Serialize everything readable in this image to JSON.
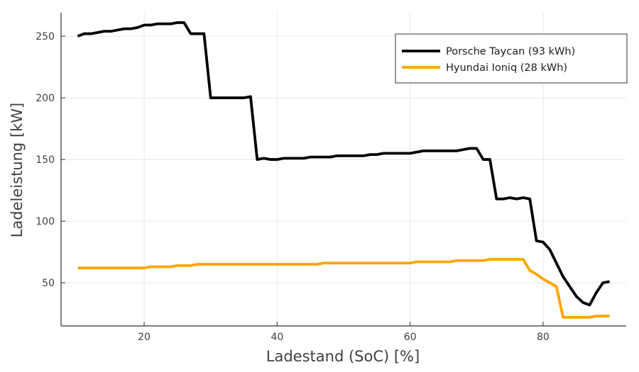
{
  "chart_data": {
    "type": "line",
    "title": "",
    "xlabel": "Ladestand (SoC) [%]",
    "ylabel": "Ladeleistung [kW]",
    "xlim": [
      7.5,
      92.5
    ],
    "ylim": [
      15,
      269
    ],
    "xticks": [
      20,
      40,
      60,
      80
    ],
    "yticks": [
      50,
      100,
      150,
      200,
      250
    ],
    "grid": true,
    "legend_position": "top-right",
    "series": [
      {
        "name": "Porsche Taycan (93 kWh)",
        "color": "#000000",
        "x": [
          10,
          11,
          12,
          13,
          14,
          15,
          16,
          17,
          18,
          19,
          20,
          21,
          22,
          23,
          24,
          25,
          26,
          27,
          28,
          29,
          30,
          31,
          32,
          33,
          34,
          35,
          36,
          37,
          38,
          39,
          40,
          41,
          42,
          43,
          44,
          45,
          46,
          47,
          48,
          49,
          50,
          51,
          52,
          53,
          54,
          55,
          56,
          57,
          58,
          59,
          60,
          61,
          62,
          63,
          64,
          65,
          66,
          67,
          68,
          69,
          70,
          71,
          72,
          73,
          74,
          75,
          76,
          77,
          78,
          79,
          80,
          81,
          82,
          83,
          84,
          85,
          86,
          87,
          88,
          89,
          90
        ],
        "y": [
          250,
          252,
          252,
          253,
          254,
          254,
          255,
          256,
          256,
          257,
          259,
          259,
          260,
          260,
          260,
          261,
          261,
          252,
          252,
          252,
          200,
          200,
          200,
          200,
          200,
          200,
          201,
          150,
          151,
          150,
          150,
          151,
          151,
          151,
          151,
          152,
          152,
          152,
          152,
          153,
          153,
          153,
          153,
          153,
          154,
          154,
          155,
          155,
          155,
          155,
          155,
          156,
          157,
          157,
          157,
          157,
          157,
          157,
          158,
          159,
          159,
          150,
          150,
          118,
          118,
          119,
          118,
          119,
          118,
          84,
          83,
          77,
          66,
          55,
          47,
          39,
          34,
          32,
          42,
          50,
          51
        ]
      },
      {
        "name": "Hyundai Ioniq (28 kWh)",
        "color": "#ffa500",
        "x": [
          10,
          11,
          12,
          13,
          14,
          15,
          16,
          17,
          18,
          19,
          20,
          21,
          22,
          23,
          24,
          25,
          26,
          27,
          28,
          29,
          30,
          31,
          32,
          33,
          34,
          35,
          36,
          37,
          38,
          39,
          40,
          41,
          42,
          43,
          44,
          45,
          46,
          47,
          48,
          49,
          50,
          51,
          52,
          53,
          54,
          55,
          56,
          57,
          58,
          59,
          60,
          61,
          62,
          63,
          64,
          65,
          66,
          67,
          68,
          69,
          70,
          71,
          72,
          73,
          74,
          75,
          76,
          77,
          78,
          79,
          80,
          81,
          82,
          83,
          84,
          85,
          86,
          87,
          88,
          89,
          90
        ],
        "y": [
          62,
          62,
          62,
          62,
          62,
          62,
          62,
          62,
          62,
          62,
          62,
          63,
          63,
          63,
          63,
          64,
          64,
          64,
          65,
          65,
          65,
          65,
          65,
          65,
          65,
          65,
          65,
          65,
          65,
          65,
          65,
          65,
          65,
          65,
          65,
          65,
          65,
          66,
          66,
          66,
          66,
          66,
          66,
          66,
          66,
          66,
          66,
          66,
          66,
          66,
          66,
          67,
          67,
          67,
          67,
          67,
          67,
          68,
          68,
          68,
          68,
          68,
          69,
          69,
          69,
          69,
          69,
          69,
          60,
          57,
          53,
          50,
          47,
          22,
          22,
          22,
          22,
          22,
          23,
          23,
          23
        ]
      }
    ]
  }
}
